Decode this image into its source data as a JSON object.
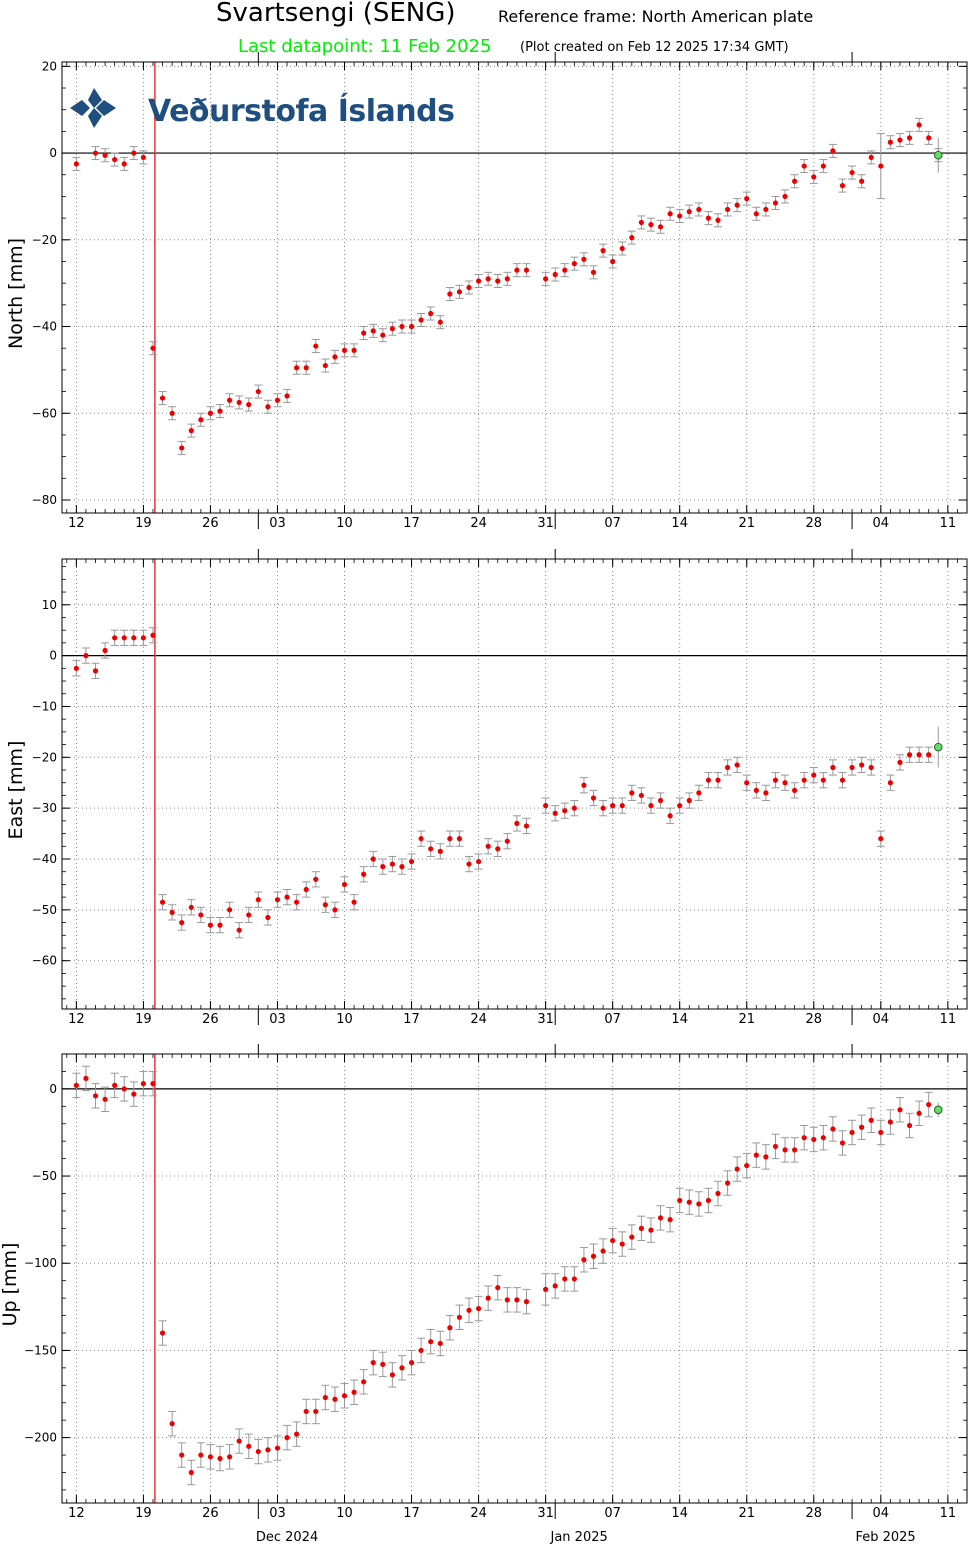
{
  "header": {
    "station": "Svartsengi (SENG)",
    "reference_frame": "Reference frame: North American plate",
    "last_datapoint": "Last datapoint: 11 Feb 2025",
    "plot_created": "(Plot created on Feb 12 2025 17:34 GMT)"
  },
  "logo": {
    "text": "Veðurstofa Íslands"
  },
  "colors": {
    "point": "#ee0000",
    "last_point": "#66dd66",
    "event_line": "#ee3333",
    "error_bar": "#999999",
    "zero_line": "#000000",
    "last_label": "#00ee00"
  },
  "chart_data": [
    {
      "type": "scatter",
      "ylabel": "North [mm]",
      "ylim": [
        -83,
        21
      ],
      "yticks": [
        20,
        0,
        -20,
        -40,
        -60,
        -80
      ],
      "x": [
        13,
        15,
        16,
        17,
        18,
        19,
        20,
        21,
        22,
        23,
        24,
        25,
        26,
        27,
        28,
        29,
        30,
        31,
        32,
        33,
        34,
        35,
        36,
        37,
        38,
        39,
        40,
        41,
        42,
        43,
        44,
        45,
        46,
        47,
        48,
        49,
        50,
        51,
        52,
        53,
        54,
        55,
        56,
        57,
        58,
        59,
        60,
        62,
        63,
        64,
        65,
        66,
        67,
        68,
        69,
        70,
        71,
        72,
        73,
        74,
        75,
        76,
        77,
        78,
        79,
        80,
        81,
        82,
        83,
        84,
        85,
        86,
        87,
        88,
        89,
        90,
        91,
        92,
        93,
        94,
        95,
        96,
        97,
        98,
        99,
        100,
        101,
        102,
        103
      ],
      "y": [
        -2.5,
        0,
        -0.5,
        -1.5,
        -2.5,
        0,
        -1,
        -45,
        -56.5,
        -60,
        -68,
        -64,
        -61.5,
        -60,
        -59.5,
        -57,
        -57.5,
        -58,
        -55,
        -58.5,
        -57,
        -56,
        -49.5,
        -49.5,
        -44.5,
        -49,
        -47,
        -45.5,
        -45.5,
        -41.5,
        -41,
        -42,
        -40.5,
        -40,
        -40,
        -38.5,
        -37,
        -39,
        -32.5,
        -32,
        -31,
        -29.5,
        -29,
        -29.5,
        -29,
        -27,
        -27,
        -29,
        -28,
        -27,
        -25.5,
        -24.5,
        -27.5,
        -22.5,
        -25,
        -22,
        -19.5,
        -16,
        -16.5,
        -17,
        -14,
        -14.5,
        -13.5,
        -13,
        -15,
        -15.5,
        -13,
        -12,
        -10.5,
        -14,
        -13,
        -11.5,
        -10,
        -6.5,
        -3,
        -5.5,
        -3,
        0.5,
        -7.5,
        -4.5,
        -6.5,
        -1,
        -3,
        2.5,
        3,
        3.5,
        6.5,
        3.5,
        -0.5
      ],
      "error": [
        1.5,
        1.5,
        1.5,
        1.5,
        1.5,
        1.5,
        1.5,
        1.5,
        1.5,
        1.5,
        1.5,
        1.5,
        1.5,
        1.5,
        1.5,
        1.5,
        1.5,
        1.5,
        1.5,
        1.5,
        1.5,
        1.5,
        1.5,
        1.5,
        1.5,
        1.5,
        1.5,
        1.5,
        1.5,
        1.5,
        1.5,
        1.5,
        1.5,
        1.5,
        1.5,
        1.5,
        1.5,
        1.5,
        1.5,
        1.5,
        1.5,
        1.5,
        1.5,
        1.5,
        1.5,
        1.5,
        1.5,
        1.5,
        1.5,
        1.5,
        1.5,
        1.5,
        1.5,
        1.5,
        1.5,
        1.5,
        1.5,
        1.5,
        1.5,
        1.5,
        1.5,
        1.5,
        1.5,
        1.5,
        1.5,
        1.5,
        1.5,
        1.5,
        1.5,
        1.5,
        1.5,
        1.5,
        1.5,
        1.5,
        1.5,
        1.5,
        1.5,
        1.5,
        1.5,
        1.5,
        1.5,
        1.5,
        7.5,
        1.5,
        1.5,
        1.5,
        1.5,
        1.5,
        1.5
      ]
    },
    {
      "type": "scatter",
      "ylabel": "East [mm]",
      "ylim": [
        -69.5,
        19
      ],
      "yticks": [
        10,
        0,
        -10,
        -20,
        -30,
        -40,
        -50,
        -60
      ],
      "x": [
        13,
        14,
        15,
        16,
        17,
        18,
        19,
        20,
        21,
        22,
        23,
        24,
        25,
        26,
        27,
        28,
        29,
        30,
        31,
        32,
        33,
        34,
        35,
        36,
        37,
        38,
        39,
        40,
        41,
        42,
        43,
        44,
        45,
        46,
        47,
        48,
        49,
        50,
        51,
        52,
        53,
        54,
        55,
        56,
        57,
        58,
        59,
        60,
        62,
        63,
        64,
        65,
        66,
        67,
        68,
        69,
        70,
        71,
        72,
        73,
        74,
        75,
        76,
        77,
        78,
        79,
        80,
        81,
        82,
        83,
        84,
        85,
        86,
        87,
        88,
        89,
        90,
        91,
        92,
        93,
        94,
        95,
        96,
        97,
        98,
        99,
        100,
        101,
        102
      ],
      "y": [
        -2.5,
        0,
        -3,
        1,
        3.5,
        3.5,
        3.5,
        3.5,
        4,
        -48.5,
        -50.5,
        -52.5,
        -49.5,
        -51,
        -53,
        -53,
        -50,
        -54,
        -51,
        -48,
        -51.5,
        -48,
        -47.5,
        -48.5,
        -46,
        -44,
        -49,
        -50,
        -45,
        -48.5,
        -43,
        -40,
        -41.5,
        -41,
        -41.5,
        -40.5,
        -36,
        -38,
        -38.5,
        -36,
        -36,
        -41,
        -40.5,
        -37.5,
        -38,
        -36.5,
        -33,
        -33.5,
        -29.5,
        -31,
        -30.5,
        -30,
        -25.5,
        -28,
        -30,
        -29.5,
        -29.5,
        -27,
        -27.5,
        -29.5,
        -28.5,
        -31.5,
        -29.5,
        -28.5,
        -27,
        -24.5,
        -24.5,
        -22,
        -21.5,
        -25,
        -26.5,
        -27,
        -24.5,
        -25,
        -26.5,
        -24.5,
        -23.5,
        -24.5,
        -22,
        -24.5,
        -22,
        -21.5,
        -22,
        -36,
        -25,
        -21,
        -19.5,
        -19.5,
        -19.5
      ]
    },
    {
      "type": "scatter",
      "ylabel": "Up [mm]",
      "ylim": [
        -237.5,
        20
      ],
      "yticks": [
        0,
        -50,
        -100,
        -150,
        -200
      ],
      "x": [
        13,
        14,
        15,
        16,
        17,
        18,
        19,
        20,
        21,
        22,
        23,
        24,
        25,
        26,
        27,
        28,
        29,
        30,
        31,
        32,
        33,
        34,
        35,
        36,
        37,
        38,
        39,
        40,
        41,
        42,
        43,
        44,
        45,
        46,
        47,
        48,
        49,
        50,
        51,
        52,
        53,
        54,
        55,
        56,
        57,
        58,
        59,
        60,
        62,
        63,
        64,
        65,
        66,
        67,
        68,
        69,
        70,
        71,
        72,
        73,
        74,
        75,
        76,
        77,
        78,
        79,
        80,
        81,
        82,
        83,
        84,
        85,
        86,
        87,
        88,
        89,
        90,
        91,
        92,
        93,
        94,
        95,
        96,
        97,
        98,
        99,
        100,
        101,
        102
      ],
      "y": [
        2,
        6,
        -4,
        -6,
        2,
        0,
        -3,
        3,
        3,
        -140,
        -192,
        -210,
        -220,
        -210,
        -211,
        -212,
        -211,
        -202,
        -205,
        -208,
        -207,
        -206,
        -200,
        -198,
        -185,
        -185,
        -177,
        -178,
        -176,
        -174,
        -168,
        -157,
        -158,
        -164,
        -160,
        -157,
        -150,
        -145,
        -146,
        -137,
        -131,
        -127,
        -126,
        -120,
        -114,
        -121,
        -121,
        -122,
        -115,
        -113,
        -109,
        -109,
        -98,
        -96,
        -93,
        -87,
        -89,
        -85,
        -80,
        -81,
        -74,
        -75,
        -64,
        -65,
        -66,
        -64,
        -60,
        -54,
        -46,
        -44,
        -38,
        -39,
        -33,
        -35,
        -35,
        -28,
        -29,
        -28,
        -23,
        -31,
        -25,
        -22,
        -18,
        -25,
        -19,
        -12,
        -21,
        -14,
        -9
      ],
      "error": [
        7,
        7,
        7,
        7,
        7,
        7,
        7,
        7,
        7,
        7,
        7,
        7,
        7,
        7,
        7,
        7,
        7,
        7,
        7,
        7,
        7,
        7,
        7,
        7,
        7,
        7,
        7,
        7,
        7,
        7,
        7,
        7,
        7,
        7,
        7,
        7,
        7,
        7,
        7,
        7,
        7,
        7,
        7,
        7,
        7,
        7,
        7,
        7,
        9,
        7,
        7,
        7,
        7,
        7,
        7,
        7,
        7,
        7,
        7,
        7,
        7,
        7,
        7,
        7,
        7,
        7,
        7,
        7,
        7,
        7,
        7,
        7,
        7,
        7,
        7,
        7,
        7,
        7,
        7,
        7,
        7,
        7,
        7,
        7,
        7,
        7,
        7,
        7,
        7
      ]
    }
  ],
  "last_points": [
    {
      "x": 103,
      "y": -0.5
    },
    {
      "x": 103,
      "y": -18
    },
    {
      "x": 103,
      "y": -12
    }
  ],
  "time_axis": {
    "xlim": [
      11.5,
      106
    ],
    "event_day": 21.2,
    "week_ticks": [
      {
        "x": 13,
        "label": "12"
      },
      {
        "x": 20,
        "label": "19"
      },
      {
        "x": 27,
        "label": "26"
      },
      {
        "x": 34,
        "label": "03"
      },
      {
        "x": 41,
        "label": "10"
      },
      {
        "x": 48,
        "label": "17"
      },
      {
        "x": 55,
        "label": "24"
      },
      {
        "x": 62,
        "label": "31"
      },
      {
        "x": 69,
        "label": "07"
      },
      {
        "x": 76,
        "label": "14"
      },
      {
        "x": 83,
        "label": "21"
      },
      {
        "x": 90,
        "label": "28"
      },
      {
        "x": 97,
        "label": "04"
      },
      {
        "x": 104,
        "label": "11"
      }
    ],
    "month_starts": [
      32,
      63,
      94
    ],
    "month_labels": [
      {
        "x": 35,
        "label": "Dec 2024"
      },
      {
        "x": 65.5,
        "label": "Jan 2025"
      },
      {
        "x": 97.5,
        "label": "Feb 2025"
      }
    ]
  }
}
